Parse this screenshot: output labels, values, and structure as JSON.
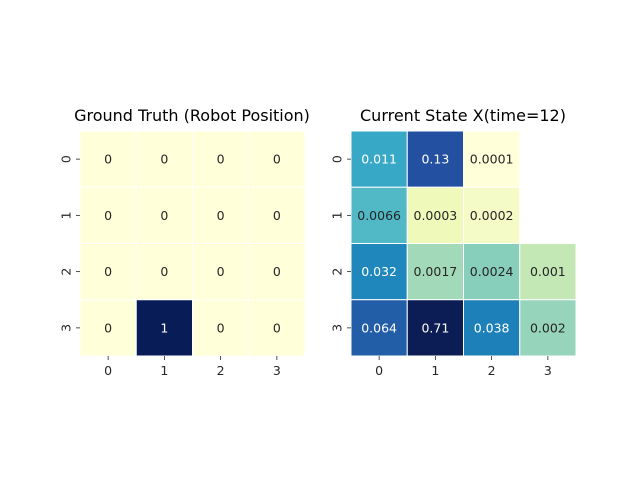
{
  "chart_data": [
    {
      "type": "heatmap",
      "title": "Ground Truth (Robot Position)",
      "x_tick_labels": [
        "0",
        "1",
        "2",
        "3"
      ],
      "y_tick_labels": [
        "0",
        "1",
        "2",
        "3"
      ],
      "colormap": "YlGnBu",
      "value_range": [
        0,
        1
      ],
      "cells": [
        {
          "row": 0,
          "col": 0,
          "value": 0,
          "label": "0"
        },
        {
          "row": 0,
          "col": 1,
          "value": 0,
          "label": "0"
        },
        {
          "row": 0,
          "col": 2,
          "value": 0,
          "label": "0"
        },
        {
          "row": 0,
          "col": 3,
          "value": 0,
          "label": "0"
        },
        {
          "row": 1,
          "col": 0,
          "value": 0,
          "label": "0"
        },
        {
          "row": 1,
          "col": 1,
          "value": 0,
          "label": "0"
        },
        {
          "row": 1,
          "col": 2,
          "value": 0,
          "label": "0"
        },
        {
          "row": 1,
          "col": 3,
          "value": 0,
          "label": "0"
        },
        {
          "row": 2,
          "col": 0,
          "value": 0,
          "label": "0"
        },
        {
          "row": 2,
          "col": 1,
          "value": 0,
          "label": "0"
        },
        {
          "row": 2,
          "col": 2,
          "value": 0,
          "label": "0"
        },
        {
          "row": 2,
          "col": 3,
          "value": 0,
          "label": "0"
        },
        {
          "row": 3,
          "col": 0,
          "value": 0,
          "label": "0"
        },
        {
          "row": 3,
          "col": 1,
          "value": 1,
          "label": "1"
        },
        {
          "row": 3,
          "col": 2,
          "value": 0,
          "label": "0"
        },
        {
          "row": 3,
          "col": 3,
          "value": 0,
          "label": "0"
        }
      ]
    },
    {
      "type": "heatmap",
      "title": "Current State X(time=12)",
      "x_tick_labels": [
        "0",
        "1",
        "2",
        "3"
      ],
      "y_tick_labels": [
        "0",
        "1",
        "2",
        "3"
      ],
      "colormap": "YlGnBu",
      "cells": [
        {
          "row": 0,
          "col": 0,
          "value": 0.011,
          "label": "0.011",
          "color": "#37a8c5",
          "text_color": "#ffffff"
        },
        {
          "row": 0,
          "col": 1,
          "value": 0.13,
          "label": "0.13",
          "color": "#2350a1",
          "text_color": "#ffffff"
        },
        {
          "row": 0,
          "col": 2,
          "value": 0.0001,
          "label": "0.0001",
          "color": "#ffffd9",
          "text_color": "#262626"
        },
        {
          "row": 1,
          "col": 0,
          "value": 0.0066,
          "label": "0.0066",
          "color": "#51b8c5",
          "text_color": "#262626"
        },
        {
          "row": 1,
          "col": 1,
          "value": 0.0003,
          "label": "0.0003",
          "color": "#eff9b9",
          "text_color": "#262626"
        },
        {
          "row": 1,
          "col": 2,
          "value": 0.0002,
          "label": "0.0002",
          "color": "#f4fbc6",
          "text_color": "#262626"
        },
        {
          "row": 2,
          "col": 0,
          "value": 0.032,
          "label": "0.032",
          "color": "#1f87bb",
          "text_color": "#ffffff"
        },
        {
          "row": 2,
          "col": 1,
          "value": 0.0017,
          "label": "0.0017",
          "color": "#a2dab9",
          "text_color": "#262626"
        },
        {
          "row": 2,
          "col": 2,
          "value": 0.0024,
          "label": "0.0024",
          "color": "#87cfbb",
          "text_color": "#262626"
        },
        {
          "row": 2,
          "col": 3,
          "value": 0.001,
          "label": "0.001",
          "color": "#c3e8b6",
          "text_color": "#262626"
        },
        {
          "row": 3,
          "col": 0,
          "value": 0.064,
          "label": "0.064",
          "color": "#225ea8",
          "text_color": "#ffffff"
        },
        {
          "row": 3,
          "col": 1,
          "value": 0.71,
          "label": "0.71",
          "color": "#0c1c54",
          "text_color": "#ffffff"
        },
        {
          "row": 3,
          "col": 2,
          "value": 0.038,
          "label": "0.038",
          "color": "#1e80b8",
          "text_color": "#ffffff"
        },
        {
          "row": 3,
          "col": 3,
          "value": 0.002,
          "label": "0.002",
          "color": "#96d5bb",
          "text_color": "#262626"
        }
      ]
    }
  ]
}
